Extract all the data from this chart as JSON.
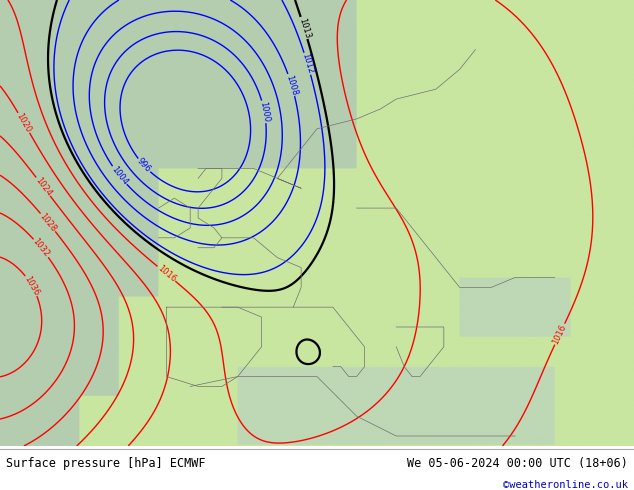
{
  "title_left": "Surface pressure [hPa] ECMWF",
  "title_right": "We 05-06-2024 00:00 UTC (18+06)",
  "copyright": "©weatheronline.co.uk",
  "bg_color": "#ffffff",
  "fig_width": 6.34,
  "fig_height": 4.9,
  "land_green": "#c8e6a0",
  "ocean_gray": "#b4c8a0",
  "atlantic_gray": "#a8bca8",
  "title_fontsize": 8.5,
  "copyright_color": "#0000cc",
  "title_color": "#000000",
  "red_levels": [
    1016,
    1020,
    1024,
    1028,
    1032,
    1036
  ],
  "blue_levels": [
    996,
    1000,
    1004,
    1008,
    1012
  ],
  "black_level": 1013,
  "contour_lw": 1.0
}
